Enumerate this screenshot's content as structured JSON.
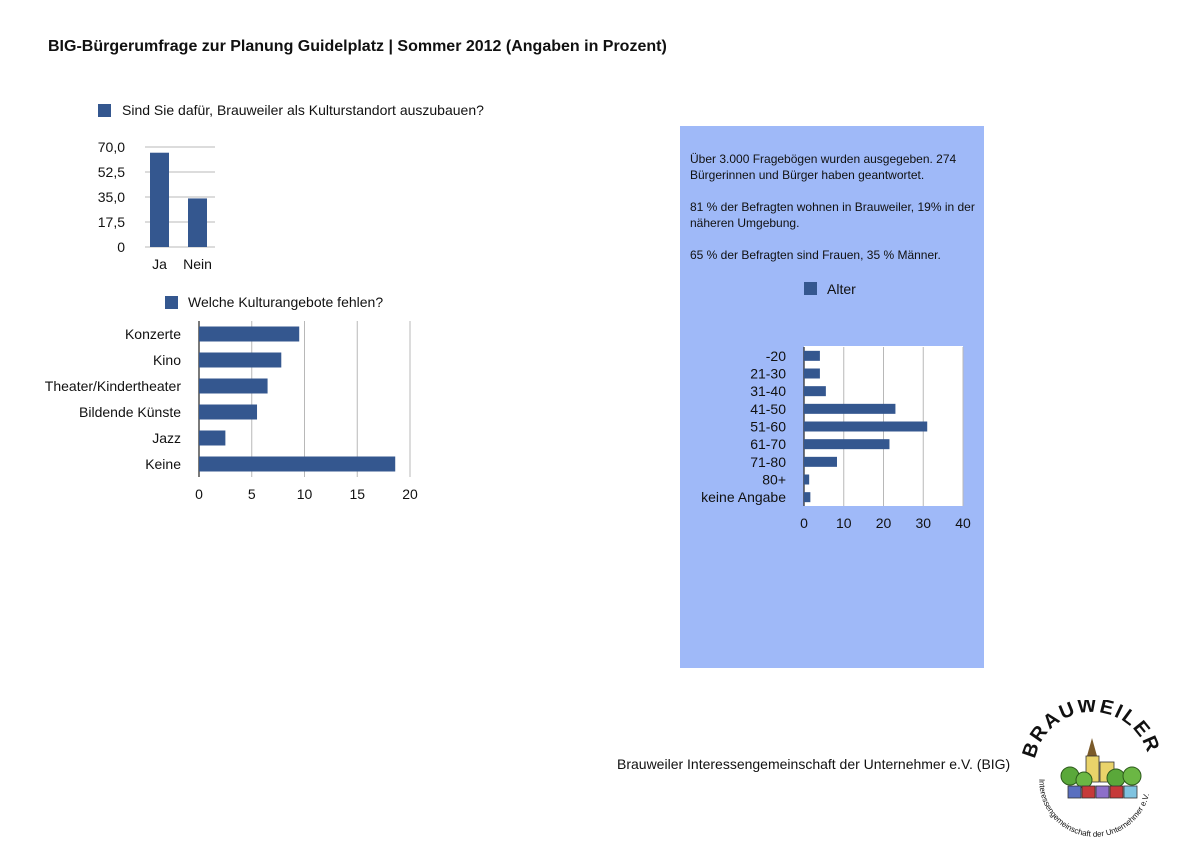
{
  "page": {
    "title": "BIG-Bürgerumfrage zur Planung Guidelplatz | Sommer 2012 (Angaben in Prozent)",
    "footer_org": "Brauweiler Interessengemeinschaft der Unternehmer e.V. (BIG)",
    "logo_text_top": "BRAUWEILER",
    "logo_text_ring": "Interessengemeinschaft der Unternehmer e.V."
  },
  "colors": {
    "bar": "#34578f",
    "grid": "#b8b8b8",
    "panel": "#9fb9f8"
  },
  "info": {
    "p1": "Über 3.000 Fragebögen wurden ausgegeben. 274 Bürgerinnen und Bürger haben geantwortet.",
    "p2": "81 % der Befragten wohnen in Brauweiler, 19% in der näheren Umgebung.",
    "p3": "65 % der Befragten sind Frauen, 35 % Männer."
  },
  "chart_data": [
    {
      "type": "bar",
      "orientation": "vertical",
      "legend": "Sind Sie dafür, Brauweiler als Kulturstandort auszubauen?",
      "legend_position": "top",
      "categories": [
        "Ja",
        "Nein"
      ],
      "values": [
        66,
        34
      ],
      "ylim": [
        0,
        70
      ],
      "yticks": [
        "0",
        "17,5",
        "35,0",
        "52,5",
        "70,0"
      ],
      "grid": true
    },
    {
      "type": "bar",
      "orientation": "horizontal",
      "legend": "Welche Kulturangebote fehlen?",
      "legend_position": "top",
      "categories": [
        "Konzerte",
        "Kino",
        "Theater/Kindertheater",
        "Bildende Künste",
        "Jazz",
        "Keine"
      ],
      "values": [
        9.5,
        7.8,
        6.5,
        5.5,
        2.5,
        18.6
      ],
      "xlim": [
        0,
        20
      ],
      "xticks": [
        "0",
        "5",
        "10",
        "15",
        "20"
      ],
      "grid": true
    },
    {
      "type": "bar",
      "orientation": "horizontal",
      "legend": "Alter",
      "legend_position": "top",
      "categories": [
        "-20",
        "21-30",
        "31-40",
        "41-50",
        "51-60",
        "61-70",
        "71-80",
        "80+",
        "keine Angabe"
      ],
      "values": [
        4,
        4,
        5.5,
        23,
        31,
        21.5,
        8.3,
        1.3,
        1.6
      ],
      "xlim": [
        0,
        40
      ],
      "xticks": [
        "0",
        "10",
        "20",
        "30",
        "40"
      ],
      "grid": true
    }
  ]
}
